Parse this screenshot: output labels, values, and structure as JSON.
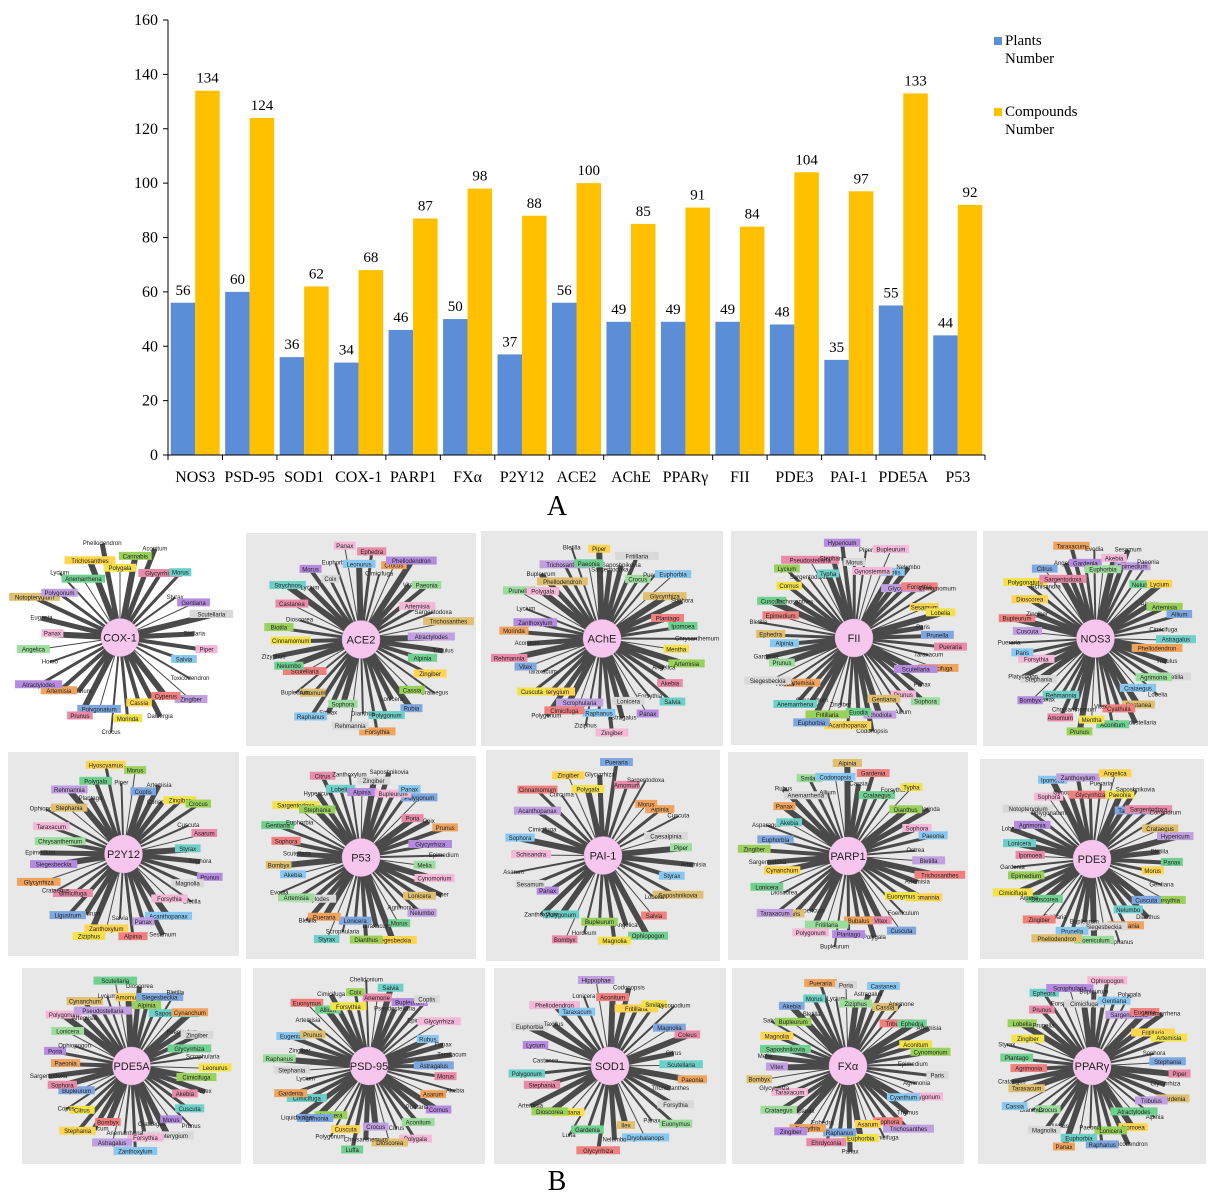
{
  "chart_data": [
    {
      "type": "bar",
      "panel_label": "A",
      "categories": [
        "NOS3",
        "PSD-95",
        "SOD1",
        "COX-1",
        "PARP1",
        "FXα",
        "P2Y12",
        "ACE2",
        "AChE",
        "PPARγ",
        "FII",
        "PDE3",
        "PAI-1",
        "PDE5A",
        "P53"
      ],
      "series": [
        {
          "name": "Plants Number",
          "name_lines": [
            "Plants",
            "Number"
          ],
          "color": "#5b8ed6",
          "values": [
            56,
            60,
            36,
            34,
            46,
            50,
            37,
            56,
            49,
            49,
            49,
            48,
            35,
            55,
            44
          ]
        },
        {
          "name": "Compounds Number",
          "name_lines": [
            "Compounds",
            "Number"
          ],
          "color": "#ffc000",
          "values": [
            134,
            124,
            62,
            68,
            87,
            98,
            88,
            100,
            85,
            91,
            84,
            104,
            97,
            133,
            92
          ]
        }
      ],
      "ylim": [
        0,
        160
      ],
      "yticks": [
        0,
        20,
        40,
        60,
        80,
        100,
        120,
        140,
        160
      ],
      "legend_position": "right",
      "data_labels": true,
      "grid": false
    },
    {
      "type": "network",
      "panel_label": "B",
      "hub_color": "#f7c6ee",
      "panel_background": "#e8e8e8",
      "networks": [
        {
          "hub": "COX-1",
          "leaves": [
            "Polygala",
            "Cannabis",
            "Aconitum",
            "Glycyrrhiza",
            "Morus",
            "Styrax",
            "Gentiana",
            "Scutellaria",
            "Stellaria",
            "Piper",
            "Salvia",
            "Toxicodendron",
            "Zingiber",
            "Cyperus",
            "Dalbergia",
            "Cassia",
            "Morinda",
            "Crocus",
            "Polygonatum",
            "Prunus",
            "Sesamum",
            "Artemisia",
            "Atractylodes",
            "Homo",
            "Angelica",
            "Panax",
            "Eugenia",
            "Notopterygium",
            "Polygonum",
            "Lycium",
            "Anemarrhena",
            "Trichosanthes",
            "Phellodendron"
          ]
        },
        {
          "hub": "ACE2",
          "leaves": [
            "Ephedra",
            "Cimicifuga",
            "Crocus",
            "Phellodendron",
            "Vitex",
            "Paeonia",
            "Artemisia",
            "Sargentodoxa",
            "Trichosanthes",
            "Atractylodes",
            "Tribulus",
            "Alpinia",
            "Zingiber",
            "Crataegus",
            "Cassia",
            "Rubia",
            "Lonicera",
            "Polygonum",
            "Forsythia",
            "Dianthus",
            "Rehmannia",
            "Sophora",
            "Smilax",
            "Raphanus",
            "Amomum",
            "Bupleurum",
            "Scutellaria",
            "Nelumbo",
            "Zizyphus",
            "Cinnamomum",
            "Biotila",
            "Dioscorea",
            "Castanea",
            "Strychnos",
            "Lycium",
            "Morus",
            "Coix",
            "Euphorbia",
            "Panax",
            "Leonurus"
          ]
        },
        {
          "hub": "AChE",
          "leaves": [
            "Saposhnikovia",
            "Fritillaria",
            "Crocus",
            "Pueraria",
            "Euphorbia",
            "Glycyrrhiza",
            "Sophora",
            "Plantago",
            "Ipomoea",
            "Chrysanthemum",
            "Mentha",
            "Artemisia",
            "Angelica",
            "Akebia",
            "Salvia",
            "Forsythia",
            "Panax",
            "Lonicera",
            "Astragalus",
            "Zingiber",
            "Raphanus",
            "Ziziphus",
            "Scrophularia",
            "Cimicifuga",
            "Polygonum",
            "Notopterygium",
            "Cuscuta",
            "Taraxacum",
            "Vitex",
            "Rehmannia",
            "Aconitum",
            "Morinda",
            "Zanthoxylum",
            "Lycium",
            "Prunella",
            "Polygala",
            "Bupleurum",
            "Phellodendron",
            "Trichosanthes",
            "Bletilla",
            "Paeonia",
            "Piper",
            "Sargentodoxa"
          ]
        },
        {
          "hub": "FII",
          "leaves": [
            "Bupleurum",
            "Coptis",
            "Nelumbo",
            "Glycyrrhiza",
            "Forsythia",
            "Cinnamomum",
            "Sesamum",
            "Lobelia",
            "Paris",
            "Prunella",
            "Pueraria",
            "Taraxacum",
            "Cimicifuga",
            "Scutellaria",
            "Panax",
            "Sophora",
            "Prunus",
            "Allium",
            "Gentiana",
            "Rhodiola",
            "Codonopsis",
            "Euodia",
            "Acanthopanax",
            "Zingiber",
            "Fritillaria",
            "Euphorbia",
            "Cynanchum",
            "Anemarrhena",
            "Artemisia",
            "Akebia",
            "Siegesbeckia",
            "Prunus",
            "Gardenia",
            "Alpinia",
            "Ephedra",
            "Bletilla",
            "Epimedium",
            "Cuscuta",
            "Trichosanthes",
            "Cornus",
            "Lycium",
            "Sargentodoxa",
            "Pseudostellaria",
            "Typha",
            "Stephania",
            "Hypericum",
            "Morus",
            "Piper",
            "Gynostemma"
          ]
        },
        {
          "hub": "NOS3",
          "leaves": [
            "Epimedium",
            "Paeonia",
            "Nelumbo",
            "Lycium",
            "Alpinia",
            "Artemisia",
            "Allium",
            "Cimicifuga",
            "Astragalus",
            "Phellodendron",
            "Tribulus",
            "Bletilla",
            "Agrimonia",
            "Lobelia",
            "Crataegus",
            "Castanea",
            "Pseudostellaria",
            "Cyathula",
            "Aconitum",
            "Vitex",
            "Mentha",
            "Prunus",
            "Chrysanthemum",
            "Amomum",
            "Rehmannia",
            "Panax",
            "Bombyx",
            "Stephania",
            "Platycodon",
            "Forsythia",
            "Paris",
            "Pueraria",
            "Cuscuta",
            "Bupleurum",
            "Zingiber",
            "Dioscorea",
            "Polygonatum",
            "Schisandra",
            "Citrus",
            "Sargentodoxa",
            "Angelica",
            "Taraxacum",
            "Gardenia",
            "Evodia",
            "Euphorbia",
            "Akebia",
            "Sesamum"
          ]
        },
        {
          "hub": "P2Y12",
          "leaves": [
            "Coriandrum",
            "Zingiber",
            "Crocus",
            "Cuscuta",
            "Asarum",
            "Styrax",
            "Sophora",
            "Prunus",
            "Magnolia",
            "Bletilla",
            "Forsythia",
            "Acanthopanax",
            "Sesamum",
            "Panax",
            "Alpinia",
            "Salvia",
            "Zanthoxylum",
            "Ziziphus",
            "Bupleurum",
            "Ligustrum",
            "Cimicifuga",
            "Crataegus",
            "Glycyrrhiza",
            "Siegesbeckia",
            "Epimedium",
            "Chrysanthemum",
            "Taraxacum",
            "Ophiopogon",
            "Stephania",
            "Rehmannia",
            "Plantago",
            "Polygala",
            "Hyoscyamus",
            "Piper",
            "Morus",
            "Coptis",
            "Artemisia"
          ]
        },
        {
          "hub": "P53",
          "leaves": [
            "Polygonum",
            "Poria",
            "Coix",
            "Prunus",
            "Glycyrrhiza",
            "Epimedium",
            "Melia",
            "Cynomorium",
            "Piper",
            "Lonicera",
            "Nelumbo",
            "Agrimonia",
            "Morus",
            "Siegesbeckia",
            "Taraxacum",
            "Dianthus",
            "Lonicera",
            "Scrophularia",
            "Styrax",
            "Pueraria",
            "Bletilla",
            "Atractylodes",
            "Artemisia",
            "Evodia",
            "Akebia",
            "Bombyx",
            "Scutellaria",
            "Sophora",
            "Gentiana",
            "Euphorbia",
            "Sargentodoxa",
            "Stephania",
            "Hypericum",
            "Citrus",
            "Lobelia",
            "Zanthoxylum",
            "Alpinia",
            "Zingiber",
            "Saposhnikovia",
            "Bupleurum",
            "Panax"
          ]
        },
        {
          "hub": "PAI-1",
          "leaves": [
            "Alpinia",
            "Cuscuta",
            "Caesalpinia",
            "Piper",
            "Artemisia",
            "Styrax",
            "Saposhnikovia",
            "Lobelia",
            "Salvia",
            "Ophiopogon",
            "Angelica",
            "Magnolia",
            "Bupleurum",
            "Hordeum",
            "Bombyx",
            "Polygonum",
            "Zanthoxylum",
            "Panax",
            "Sesamum",
            "Asarum",
            "Schisandra",
            "Sophora",
            "Cimicifuga",
            "Acanthopanax",
            "Cinnamomum",
            "Curcuma",
            "Zingiber",
            "Polygala",
            "Glycyrrhiza",
            "Pueraria",
            "Amomum",
            "Sargentodoxa",
            "Morus"
          ]
        },
        {
          "hub": "PARP1",
          "leaves": [
            "Morinda",
            "Sophora",
            "Paeonia",
            "Ostrea",
            "Bletilla",
            "Trichosanthes",
            "Artemisia",
            "Rehmannia",
            "Euonymus",
            "Foeniculum",
            "Cuscuta",
            "Vitex",
            "Polygala",
            "Bubalus",
            "Plantago",
            "Bupleurum",
            "Fritillaria",
            "Polygonum",
            "Hypericum",
            "Paris",
            "Taraxacum",
            "Dioscorea",
            "Lonicera",
            "Cynanchum",
            "Sargentodoxa",
            "Zingiber",
            "Euphorbia",
            "Asparagus",
            "Akebia",
            "Panax",
            "Rubus",
            "Anemarrhena",
            "Smilax",
            "Allium",
            "Codonopsis",
            "Alpinia",
            "Cassia",
            "Gardenia",
            "Crataegus",
            "Forsythia",
            "Typha",
            "Dianthus"
          ]
        },
        {
          "hub": "PDE3",
          "leaves": [
            "Crataegus",
            "Hypericum",
            "Bletilla",
            "Panax",
            "Morus",
            "Gentiana",
            "Forsythia",
            "Cuscuta",
            "Dianthus",
            "Nelumbo",
            "Stephania",
            "Raphanus",
            "Siegesbeckia",
            "Foeniculum",
            "Bupleurum",
            "Prunella",
            "Phellodendron",
            "Fritillaria",
            "Zingiber",
            "Dioscorea",
            "Alpinia",
            "Cimicifuga",
            "Epimedium",
            "Gardenia",
            "Ipomoea",
            "Lonicera",
            "Lobelia",
            "Agrimonia",
            "Notopterygium",
            "Polygonatum",
            "Sophora",
            "Ipomoea",
            "Cynomorium",
            "Zanthoxylum",
            "Glycyrrhiza",
            "Pueraria",
            "Angelica",
            "Paeonia",
            "Saposhnikovia",
            "Taraxacum",
            "Sargentodoxa",
            "Coriandrum"
          ]
        },
        {
          "hub": "PDE5A",
          "leaves": [
            "Glycyrrhiza",
            "Scrophularia",
            "Leonurus",
            "Cimicifuga",
            "Vitex",
            "Akebia",
            "Cuscuta",
            "Prunus",
            "Morus",
            "Notopterygium",
            "Crataegus",
            "Forsythia",
            "Zanthoxylum",
            "Anemarrhena",
            "Astragalus",
            "Bombyx",
            "Taraxacum",
            "Stephania",
            "Citrus",
            "Coptis",
            "Bupleurum",
            "Sophora",
            "Sargentodoxa",
            "Paeonia",
            "Poria",
            "Ophiopogon",
            "Lonicera",
            "Polygonum",
            "Artemisia",
            "Cynanchum",
            "Pseudostellaria",
            "Lycium",
            "Scutellaria",
            "Amomum",
            "Dioscorea",
            "Alpinia",
            "Siegesbeckia",
            "Bletilla",
            "Saposhnikovia",
            "Cynanchum",
            "Foeniculum",
            "Zingiber"
          ]
        },
        {
          "hub": "PSD-95",
          "leaves": [
            "Taraxacum",
            "Astragalus",
            "Morus",
            "Akebia",
            "Asarum",
            "Cornus",
            "Pueraria",
            "Aconitum",
            "Polygala",
            "Citrus",
            "Dioscorea",
            "Crocus",
            "Chrysanthemum",
            "Luffa",
            "Cuscuta",
            "Polygonum",
            "Lonicera",
            "Agrimonia",
            "Liquidambar",
            "Cimicifuga",
            "Gardenia",
            "Lycium",
            "Stephania",
            "Raphanus",
            "Zingiber",
            "Eugenia",
            "Prunus",
            "Artemisia",
            "Euonymus",
            "Allium",
            "Cimicifuga",
            "Forsythia",
            "Coix",
            "Chelidonium",
            "Anemone",
            "Salvia",
            "Pseudostellaria",
            "Bupleurum",
            "Coptis",
            "Epimedium",
            "Glycyrrhiza",
            "Rubus",
            "Panax"
          ]
        },
        {
          "hub": "SOD1",
          "leaves": [
            "Scutellaria",
            "Paeonia",
            "Trichosanthes",
            "Forsythia",
            "Euonymus",
            "Panax",
            "Dryobalanops",
            "Ilex",
            "Nelumbo",
            "Glycyrrhiza",
            "Gardenia",
            "Luffa",
            "Gentiana",
            "Dioscorea",
            "Artemisia",
            "Stephania",
            "Polygonum",
            "Castanea",
            "Lycium",
            "Euphorbia",
            "Taxillus",
            "Phellodendron",
            "Taraxacum",
            "Lonicera",
            "Hippophae",
            "Aconitum",
            "Codonopsis",
            "Fritillaria",
            "Smilax",
            "Lycopodium",
            "Magnolia",
            "Coleus",
            "Citrus"
          ]
        },
        {
          "hub": "FXα",
          "leaves": [
            "Paris",
            "Agrimonia",
            "Polygonum",
            "Cyanthum",
            "Thymus",
            "Trichosanthes",
            "Sophora",
            "Cimicifuga",
            "Asarum",
            "Euphorbia",
            "Panax",
            "Raphanus",
            "Ehrdyconia",
            "Ephedra",
            "Forsythia",
            "Zingiber",
            "Acanthopanax",
            "Crataegus",
            "Taraxacum",
            "Glycyrrhiza",
            "Bombyx",
            "Vitex",
            "Melia",
            "Saposhnikovia",
            "Magnolia",
            "Salvia",
            "Bupleurum",
            "Akebia",
            "Bletilla",
            "Morus",
            "Pueraria",
            "Lycium",
            "Poria",
            "Ziziphus",
            "Astragalus",
            "Castanea",
            "Cassia",
            "Anemone",
            "Tribulus",
            "Ephedra",
            "Artemisia",
            "Aconitum",
            "Cynomorium",
            "Epimedium"
          ]
        },
        {
          "hub": "PPARγ",
          "leaves": [
            "Glycyrrhiza",
            "Gardenia",
            "Tribulus",
            "Alpinia",
            "Atractylodes",
            "Ipomoea",
            "Toxicodendron",
            "Lonicera",
            "Raphanus",
            "Paeonia",
            "Euphorbia",
            "Panax",
            "Morus",
            "Magnolia",
            "Crocus",
            "Dianthus",
            "Cassia",
            "Taraxacum",
            "Crataegus",
            "Agrimonia",
            "Plantago",
            "Styrax",
            "Zingiber",
            "Lobelia",
            "Prunella",
            "Prunus",
            "Ephedra",
            "Forsythia",
            "Scrophularia",
            "Cimicifuga",
            "Bupleurum",
            "Ophiopogon",
            "Gentiana",
            "Polygala",
            "Sargentodoxa",
            "Eugenia",
            "Anemarrhena",
            "Fritillaria",
            "Artemisia",
            "Sophora",
            "Stephania",
            "Piper"
          ]
        }
      ]
    }
  ]
}
